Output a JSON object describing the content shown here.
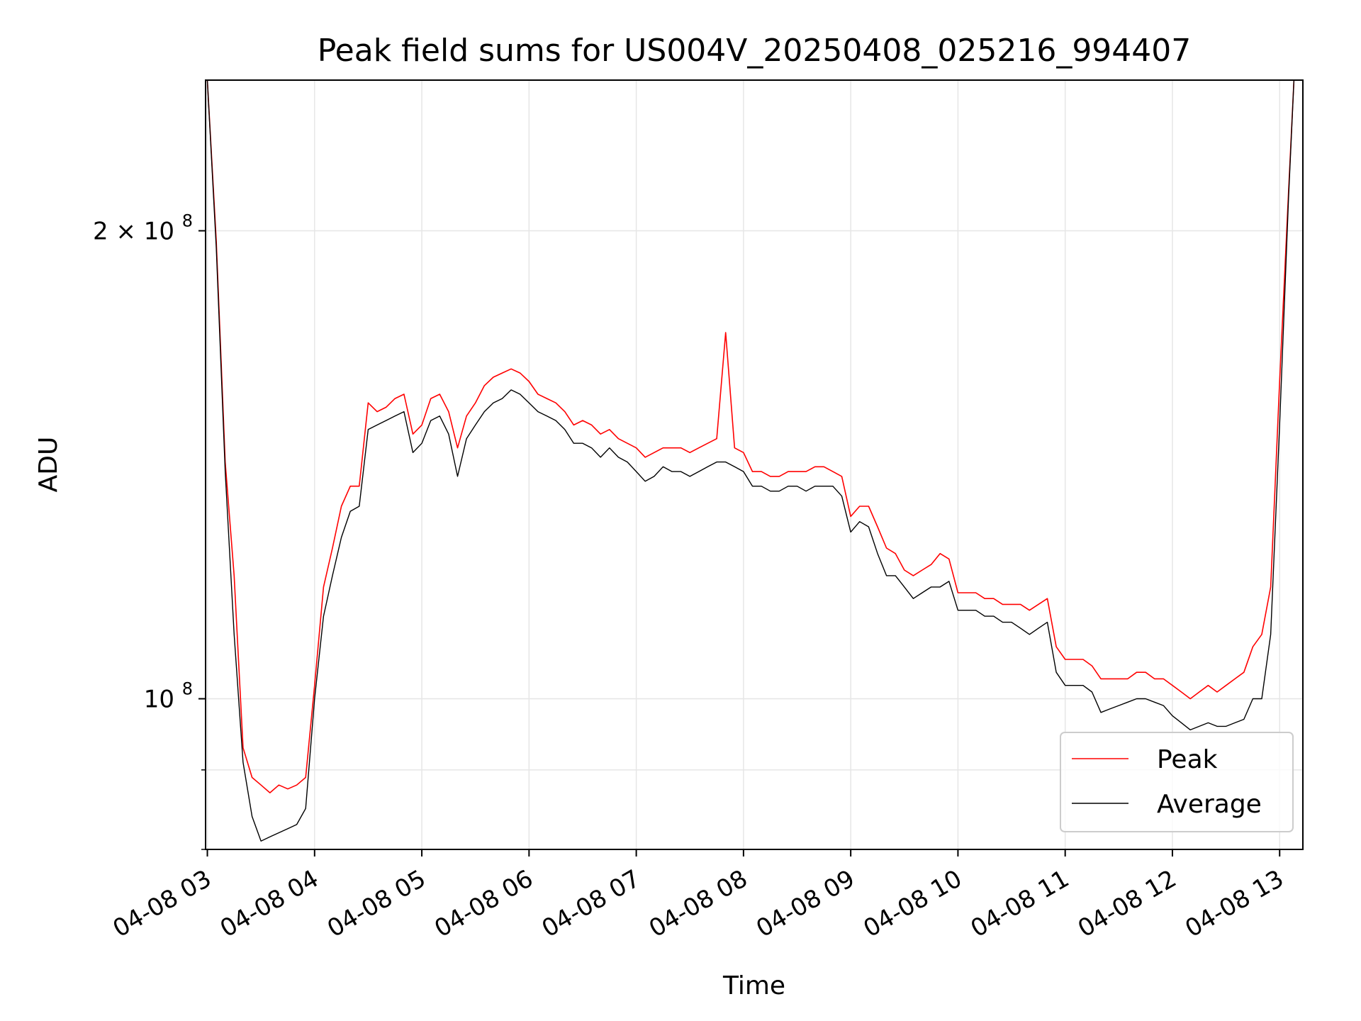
{
  "chart_data": {
    "type": "line",
    "title": "Peak field sums for US004V_20250408_025216_994407",
    "xlabel": "Time",
    "ylabel": "ADU",
    "yscale": "log",
    "xlim": [
      "2025-04-08T02:59",
      "2025-04-08T13:13"
    ],
    "ylim": [
      80000000,
      250000000
    ],
    "grid": true,
    "legend": "lower-right",
    "x_ticks": [
      "04-08 03",
      "04-08 04",
      "04-08 05",
      "04-08 06",
      "04-08 07",
      "04-08 08",
      "04-08 09",
      "04-08 10",
      "04-08 11",
      "04-08 12",
      "04-08 13"
    ],
    "y_ticks": [
      {
        "value": 100000000,
        "base": "10",
        "exp": "8",
        "prefix": ""
      },
      {
        "value": 200000000,
        "base": "10",
        "exp": "8",
        "prefix": "2 × "
      }
    ],
    "y_minor_ticks": [
      90000000,
      80000000
    ],
    "x": [
      "03:00",
      "03:05",
      "03:10",
      "03:15",
      "03:20",
      "03:25",
      "03:30",
      "03:35",
      "03:40",
      "03:45",
      "03:50",
      "03:55",
      "04:00",
      "04:05",
      "04:10",
      "04:15",
      "04:20",
      "04:25",
      "04:30",
      "04:35",
      "04:40",
      "04:45",
      "04:50",
      "04:55",
      "05:00",
      "05:05",
      "05:10",
      "05:15",
      "05:20",
      "05:25",
      "05:30",
      "05:35",
      "05:40",
      "05:45",
      "05:50",
      "05:55",
      "06:00",
      "06:05",
      "06:10",
      "06:15",
      "06:20",
      "06:25",
      "06:30",
      "06:35",
      "06:40",
      "06:45",
      "06:50",
      "06:55",
      "07:00",
      "07:05",
      "07:10",
      "07:15",
      "07:20",
      "07:25",
      "07:30",
      "07:35",
      "07:40",
      "07:45",
      "07:50",
      "07:55",
      "08:00",
      "08:05",
      "08:10",
      "08:15",
      "08:20",
      "08:25",
      "08:30",
      "08:35",
      "08:40",
      "08:45",
      "08:50",
      "08:55",
      "09:00",
      "09:05",
      "09:10",
      "09:15",
      "09:20",
      "09:25",
      "09:30",
      "09:35",
      "09:40",
      "09:45",
      "09:50",
      "09:55",
      "10:00",
      "10:05",
      "10:10",
      "10:15",
      "10:20",
      "10:25",
      "10:30",
      "10:35",
      "10:40",
      "10:45",
      "10:50",
      "10:55",
      "11:00",
      "11:05",
      "11:10",
      "11:15",
      "11:20",
      "11:25",
      "11:30",
      "11:35",
      "11:40",
      "11:45",
      "11:50",
      "11:55",
      "12:00",
      "12:05",
      "12:10",
      "12:15",
      "12:20",
      "12:25",
      "12:30",
      "12:35",
      "12:40",
      "12:45",
      "12:50",
      "12:55",
      "13:00",
      "13:05",
      "13:08"
    ],
    "series": [
      {
        "name": "Average",
        "color": "#000000",
        "values": [
          250000000,
          195000000,
          140000000,
          110000000,
          91000000,
          84000000,
          81000000,
          81500000,
          82000000,
          82500000,
          83000000,
          85000000,
          100000000,
          113000000,
          120000000,
          127000000,
          132000000,
          133000000,
          149000000,
          150000000,
          151000000,
          152000000,
          153000000,
          144000000,
          146000000,
          151000000,
          152000000,
          148000000,
          139000000,
          147000000,
          150000000,
          153000000,
          155000000,
          156000000,
          158000000,
          157000000,
          155000000,
          153000000,
          152000000,
          151000000,
          149000000,
          146000000,
          146000000,
          145000000,
          143000000,
          145000000,
          143000000,
          142000000,
          140000000,
          138000000,
          139000000,
          141000000,
          140000000,
          140000000,
          139000000,
          140000000,
          141000000,
          142000000,
          142000000,
          141000000,
          140000000,
          137000000,
          137000000,
          136000000,
          136000000,
          137000000,
          137000000,
          136000000,
          137000000,
          137000000,
          137000000,
          135000000,
          128000000,
          130000000,
          129000000,
          124000000,
          120000000,
          120000000,
          118000000,
          116000000,
          117000000,
          118000000,
          118000000,
          119000000,
          114000000,
          114000000,
          114000000,
          113000000,
          113000000,
          112000000,
          112000000,
          111000000,
          110000000,
          111000000,
          112000000,
          104000000,
          102000000,
          102000000,
          102000000,
          101000000,
          98000000,
          98500000,
          99000000,
          99500000,
          100000000,
          100000000,
          99500000,
          99000000,
          97500000,
          96500000,
          95500000,
          96000000,
          96500000,
          96000000,
          96000000,
          96500000,
          97000000,
          100000000,
          100000000,
          110000000,
          150000000,
          210000000,
          250000000
        ]
      },
      {
        "name": "Peak",
        "color": "#ff0000",
        "values": [
          250000000,
          197000000,
          142000000,
          120000000,
          93000000,
          89000000,
          88000000,
          87000000,
          88000000,
          87500000,
          88000000,
          89000000,
          102000000,
          118000000,
          125000000,
          133000000,
          137000000,
          137000000,
          155000000,
          153000000,
          154000000,
          156000000,
          157000000,
          148000000,
          150000000,
          156000000,
          157000000,
          153000000,
          145000000,
          152000000,
          155000000,
          159000000,
          161000000,
          162000000,
          163000000,
          162000000,
          160000000,
          157000000,
          156000000,
          155000000,
          153000000,
          150000000,
          151000000,
          150000000,
          148000000,
          149000000,
          147000000,
          146000000,
          145000000,
          143000000,
          144000000,
          145000000,
          145000000,
          145000000,
          144000000,
          145000000,
          146000000,
          147000000,
          172000000,
          145000000,
          144000000,
          140000000,
          140000000,
          139000000,
          139000000,
          140000000,
          140000000,
          140000000,
          141000000,
          141000000,
          140000000,
          139000000,
          131000000,
          133000000,
          133000000,
          129000000,
          125000000,
          124000000,
          121000000,
          120000000,
          121000000,
          122000000,
          124000000,
          123000000,
          117000000,
          117000000,
          117000000,
          116000000,
          116000000,
          115000000,
          115000000,
          115000000,
          114000000,
          115000000,
          116000000,
          108000000,
          106000000,
          106000000,
          106000000,
          105000000,
          103000000,
          103000000,
          103000000,
          103000000,
          104000000,
          104000000,
          103000000,
          103000000,
          102000000,
          101000000,
          100000000,
          101000000,
          102000000,
          101000000,
          102000000,
          103000000,
          104000000,
          108000000,
          110000000,
          118000000,
          160000000,
          212000000,
          250000000
        ]
      }
    ]
  }
}
